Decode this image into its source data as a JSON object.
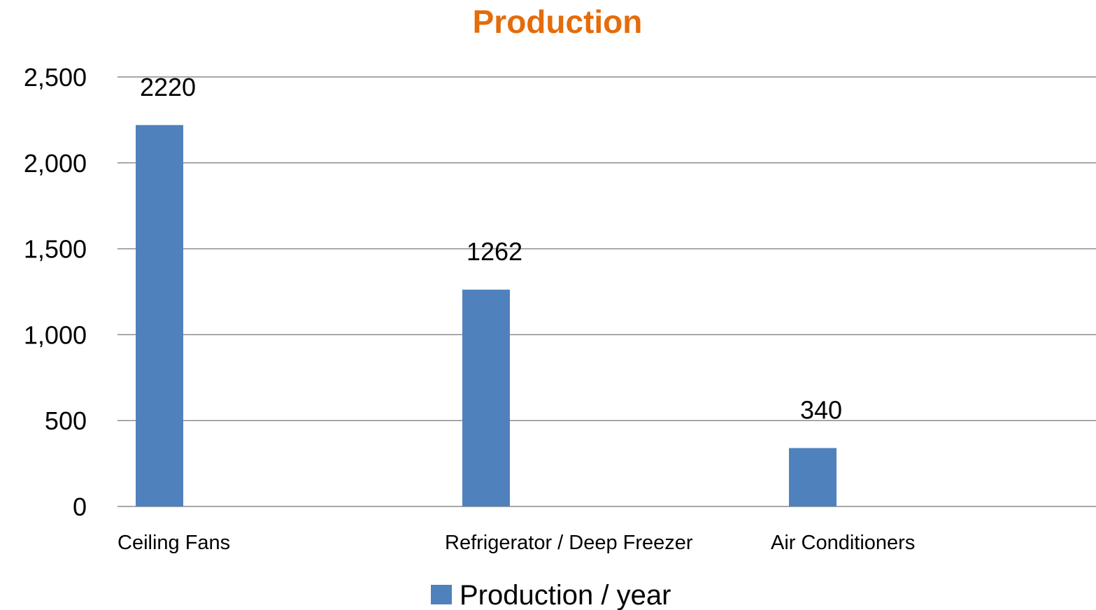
{
  "chart_data": {
    "type": "bar",
    "title": "Production",
    "categories": [
      "Ceiling Fans",
      "Refrigerator / Deep Freezer",
      "Air Conditioners"
    ],
    "series": [
      {
        "name": "Production / year",
        "values": [
          2220,
          1262,
          340
        ],
        "color": "#4F81BD"
      }
    ],
    "data_labels": [
      "2220",
      "1262",
      "340"
    ],
    "ylim": [
      0,
      2500
    ],
    "y_ticks": [
      0,
      500,
      1000,
      1500,
      2000,
      2500
    ],
    "y_tick_labels": [
      "0",
      "500",
      "1,000",
      "1,500",
      "2,000",
      "2,500"
    ],
    "xlabel": "",
    "ylabel": "",
    "grid": true,
    "legend_position": "bottom",
    "title_color": "#E46C0A",
    "gridline_color": "#8C8C8C"
  }
}
